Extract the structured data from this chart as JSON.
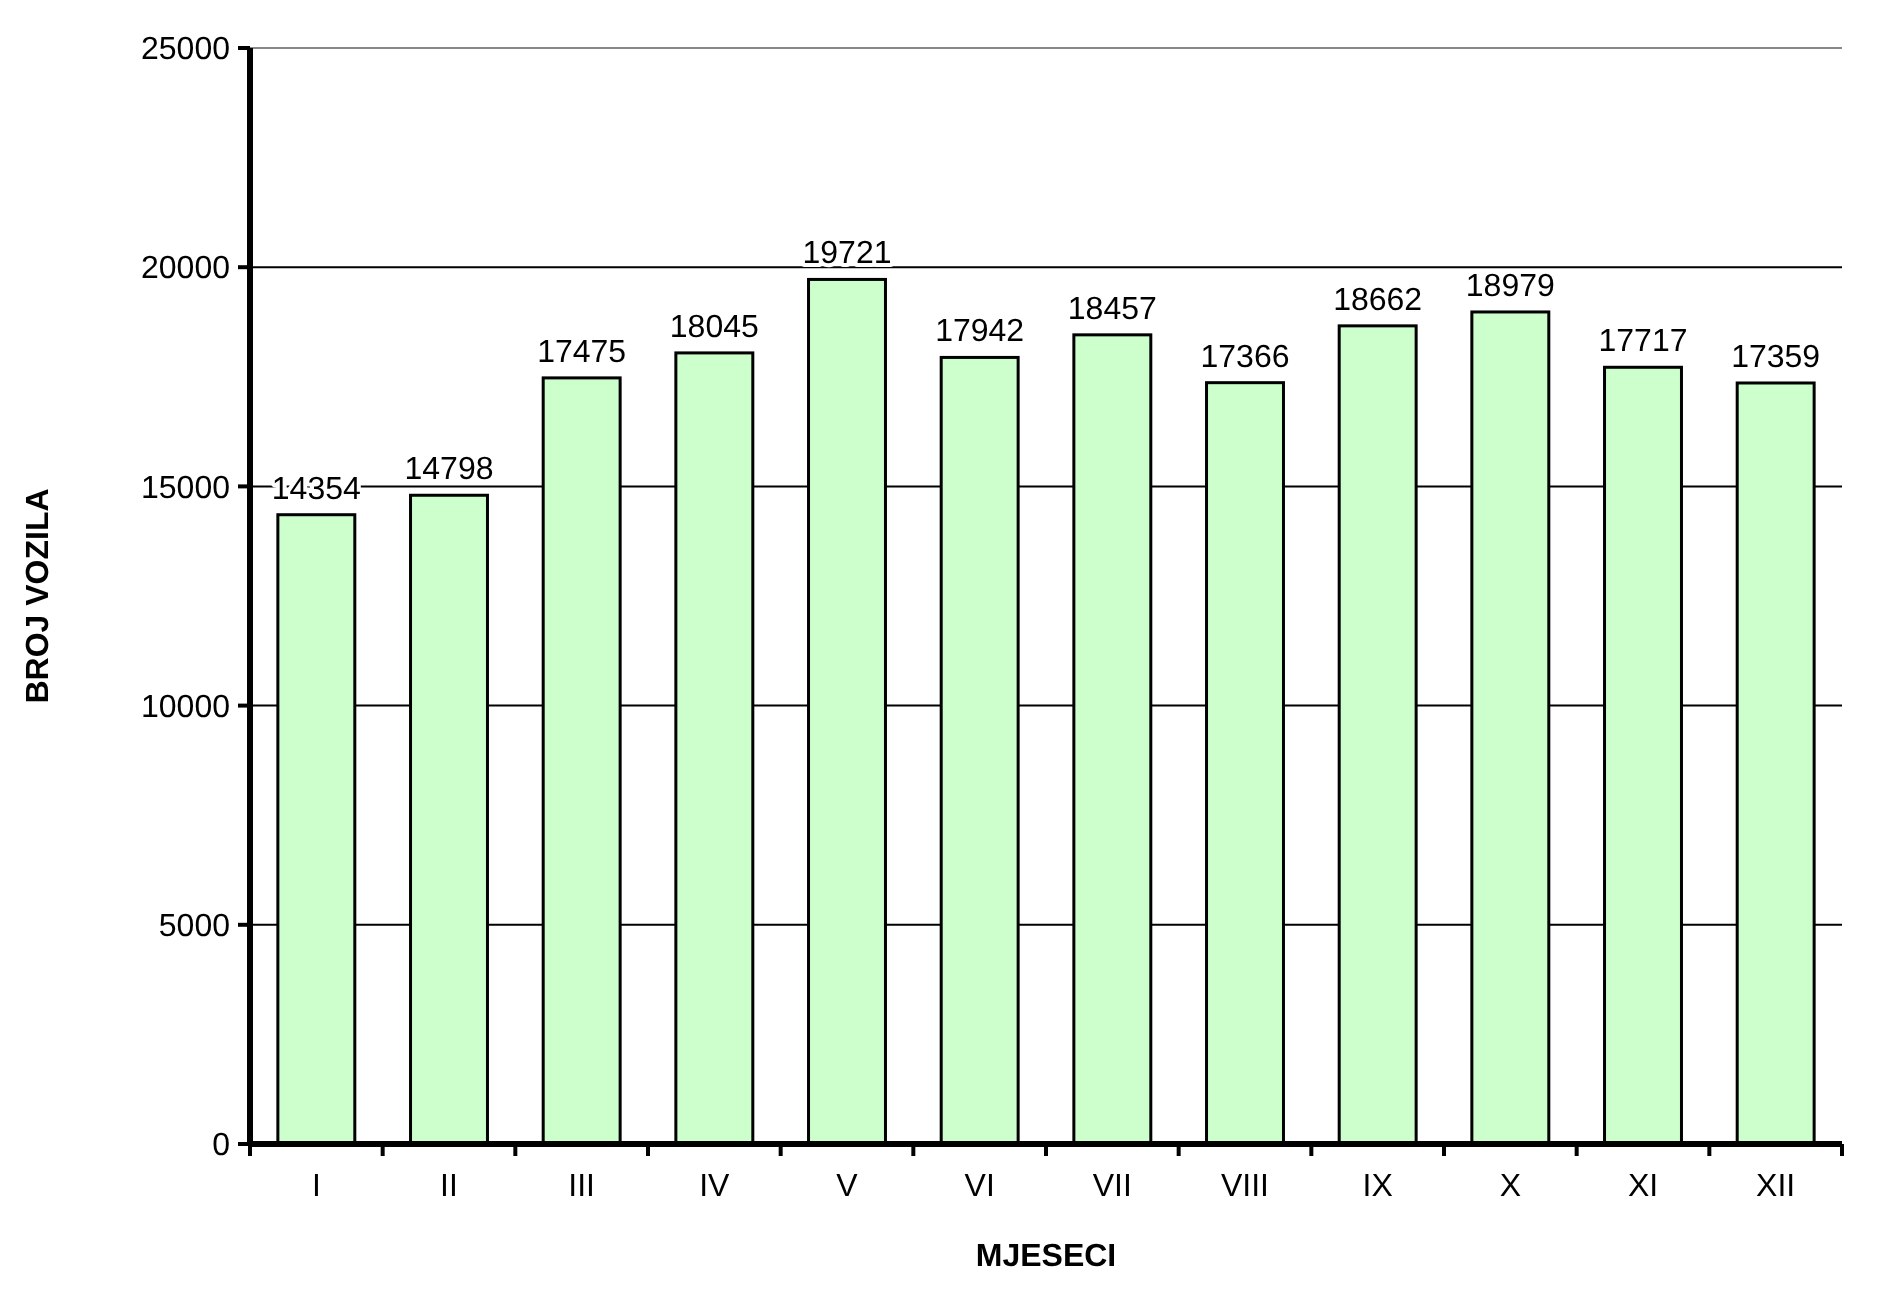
{
  "chart_data": {
    "type": "bar",
    "xlabel": "MJESECI",
    "ylabel": "BROJ VOZILA",
    "categories": [
      "I",
      "II",
      "III",
      "IV",
      "V",
      "VI",
      "VII",
      "VIII",
      "IX",
      "X",
      "XI",
      "XII"
    ],
    "values": [
      14354,
      14798,
      17475,
      18045,
      19721,
      17942,
      18457,
      17366,
      18662,
      18979,
      17717,
      17359
    ],
    "color": "#ccffcc",
    "ylim": [
      0,
      25000
    ],
    "yticks": [
      0,
      5000,
      10000,
      15000,
      20000,
      25000
    ],
    "grid": "y",
    "data_labels": true
  }
}
